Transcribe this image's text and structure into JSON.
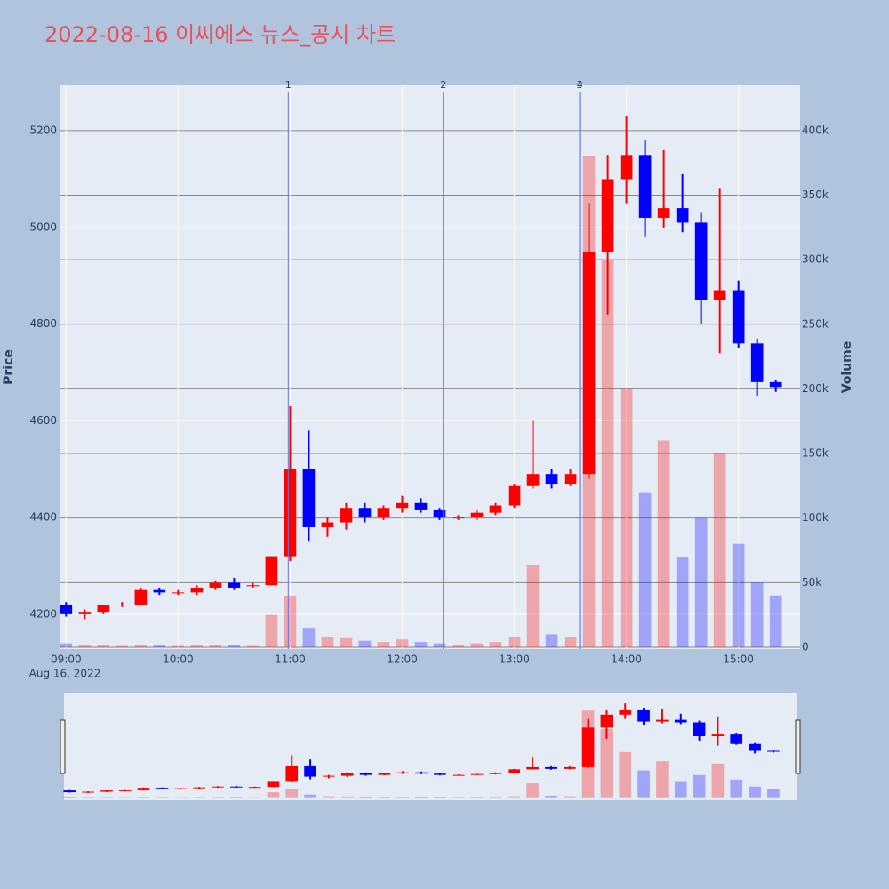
{
  "chart_data": {
    "type": "candlestick",
    "title": "2022-08-16 이씨에스 뉴스_공시 차트",
    "y_label": "Price",
    "y2_label": "Volume",
    "x_date_label": "Aug 16, 2022",
    "increasing_color": "#ff0000",
    "decreasing_color": "#0000ff",
    "x": [
      "2022-08-16 09:00",
      "2022-08-16 09:10",
      "2022-08-16 09:20",
      "2022-08-16 09:30",
      "2022-08-16 09:40",
      "2022-08-16 09:50",
      "2022-08-16 10:00",
      "2022-08-16 10:10",
      "2022-08-16 10:20",
      "2022-08-16 10:30",
      "2022-08-16 10:40",
      "2022-08-16 10:50",
      "2022-08-16 11:00",
      "2022-08-16 11:10",
      "2022-08-16 11:20",
      "2022-08-16 11:30",
      "2022-08-16 11:40",
      "2022-08-16 11:50",
      "2022-08-16 12:00",
      "2022-08-16 12:10",
      "2022-08-16 12:20",
      "2022-08-16 12:30",
      "2022-08-16 12:40",
      "2022-08-16 12:50",
      "2022-08-16 13:00",
      "2022-08-16 13:10",
      "2022-08-16 13:20",
      "2022-08-16 13:30",
      "2022-08-16 13:40",
      "2022-08-16 13:50",
      "2022-08-16 14:00",
      "2022-08-16 14:10",
      "2022-08-16 14:20",
      "2022-08-16 14:30",
      "2022-08-16 14:40",
      "2022-08-16 14:50",
      "2022-08-16 15:00",
      "2022-08-16 15:10",
      "2022-08-16 15:20"
    ],
    "open": [
      4220,
      4200,
      4205,
      4220,
      4220,
      4250,
      4245,
      4245,
      4255,
      4265,
      4258,
      4260,
      4320,
      4500,
      4380,
      4390,
      4420,
      4400,
      4420,
      4430,
      4415,
      4400,
      4400,
      4410,
      4425,
      4465,
      4490,
      4470,
      4490,
      4950,
      5100,
      5150,
      5020,
      5040,
      5010,
      4850,
      4870,
      4760,
      4680
    ],
    "high": [
      4225,
      4210,
      4220,
      4225,
      4255,
      4255,
      4250,
      4260,
      4270,
      4275,
      4265,
      4320,
      4630,
      4580,
      4400,
      4430,
      4430,
      4425,
      4445,
      4440,
      4420,
      4405,
      4415,
      4430,
      4470,
      4600,
      4500,
      4500,
      5050,
      5150,
      5230,
      5180,
      5160,
      5110,
      5030,
      5080,
      4890,
      4770,
      4685
    ],
    "low": [
      4195,
      4190,
      4200,
      4215,
      4220,
      4240,
      4240,
      4240,
      4250,
      4250,
      4255,
      4260,
      4310,
      4350,
      4360,
      4375,
      4390,
      4395,
      4410,
      4410,
      4395,
      4395,
      4395,
      4405,
      4420,
      4460,
      4460,
      4465,
      4480,
      4820,
      5050,
      4980,
      5000,
      4990,
      4800,
      4740,
      4750,
      4650,
      4660
    ],
    "close": [
      4200,
      4205,
      4220,
      4220,
      4250,
      4245,
      4245,
      4255,
      4265,
      4255,
      4260,
      4320,
      4500,
      4380,
      4390,
      4420,
      4400,
      4420,
      4430,
      4415,
      4400,
      4400,
      4410,
      4425,
      4465,
      4490,
      4470,
      4490,
      4950,
      5100,
      5150,
      5020,
      5040,
      5010,
      4850,
      4870,
      4760,
      4680,
      4670
    ],
    "volume": [
      3000,
      2000,
      2000,
      1000,
      2000,
      1500,
      1000,
      1500,
      2000,
      2000,
      1000,
      25000,
      40000,
      15000,
      8000,
      7000,
      5000,
      4000,
      6000,
      4000,
      3000,
      2000,
      3000,
      4000,
      8000,
      64000,
      10000,
      8000,
      380000,
      300000,
      200000,
      120000,
      160000,
      70000,
      100000,
      150000,
      80000,
      50000,
      40000
    ],
    "xlim": [
      "2022-08-16 08:57",
      "2022-08-16 15:33"
    ],
    "xticks": [
      {
        "value": "2022-08-16 09:00",
        "label": "09:00"
      },
      {
        "value": "2022-08-16 10:00",
        "label": "10:00"
      },
      {
        "value": "2022-08-16 11:00",
        "label": "11:00"
      },
      {
        "value": "2022-08-16 12:00",
        "label": "12:00"
      },
      {
        "value": "2022-08-16 13:00",
        "label": "13:00"
      },
      {
        "value": "2022-08-16 14:00",
        "label": "14:00"
      },
      {
        "value": "2022-08-16 15:00",
        "label": "15:00"
      }
    ],
    "ylim": [
      4128,
      5294
    ],
    "yticks": [
      4200,
      4400,
      4600,
      4800,
      5000,
      5200
    ],
    "y2lim": [
      -1400,
      435000
    ],
    "y2ticks": [
      0,
      {
        "value": 50000,
        "label": "50k"
      },
      {
        "value": 100000,
        "label": "100k"
      },
      {
        "value": 150000,
        "label": "150k"
      },
      {
        "value": 200000,
        "label": "200k"
      },
      {
        "value": 250000,
        "label": "250k"
      },
      {
        "value": 300000,
        "label": "300k"
      },
      {
        "value": 350000,
        "label": "350k"
      },
      {
        "value": 400000,
        "label": "400k"
      }
    ],
    "annotations": [
      {
        "label": "1",
        "x": "2022-08-16 10:59"
      },
      {
        "label": "2",
        "x": "2022-08-16 12:22"
      },
      {
        "label": "3",
        "x": "2022-08-16 13:35"
      },
      {
        "label": "4",
        "x": "2022-08-16 13:35"
      }
    ]
  }
}
